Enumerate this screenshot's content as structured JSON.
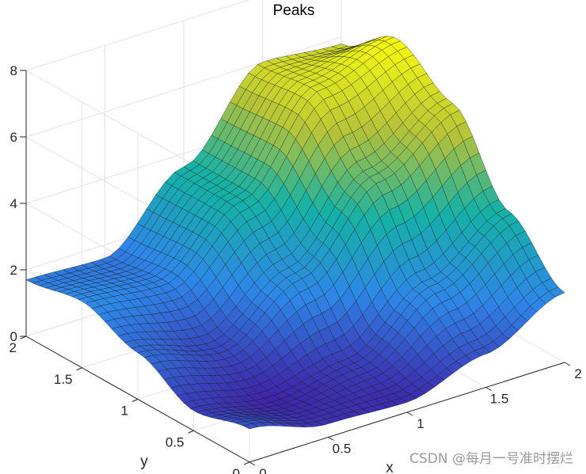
{
  "chart_data": {
    "type": "surface",
    "title": "Peaks",
    "xlabel": "x",
    "ylabel": "y",
    "zlabel": "",
    "xlim": [
      0,
      2
    ],
    "ylim": [
      0,
      2
    ],
    "zlim": [
      0,
      8
    ],
    "x_ticks": [
      "0",
      "0.5",
      "1",
      "1.5",
      "2"
    ],
    "y_ticks": [
      "0",
      "0.5",
      "1",
      "1.5",
      "2"
    ],
    "z_ticks": [
      "0",
      "2",
      "4",
      "6",
      "8"
    ],
    "grid": true,
    "colormap": "parula",
    "samples": {
      "x": [
        0,
        0.5,
        1,
        1.5,
        2
      ],
      "y": [
        0,
        0.5,
        1,
        1.5,
        2
      ],
      "z": [
        [
          1.0,
          0.4,
          0.3,
          1.0,
          2.1
        ],
        [
          0.6,
          0.2,
          0.6,
          2.2,
          3.6
        ],
        [
          1.4,
          0.8,
          2.3,
          4.5,
          5.9
        ],
        [
          2.0,
          1.8,
          3.6,
          6.2,
          6.9
        ],
        [
          1.7,
          1.6,
          3.6,
          6.0,
          5.8
        ]
      ]
    }
  },
  "watermark": "CSDN @每月一号准时摆烂"
}
